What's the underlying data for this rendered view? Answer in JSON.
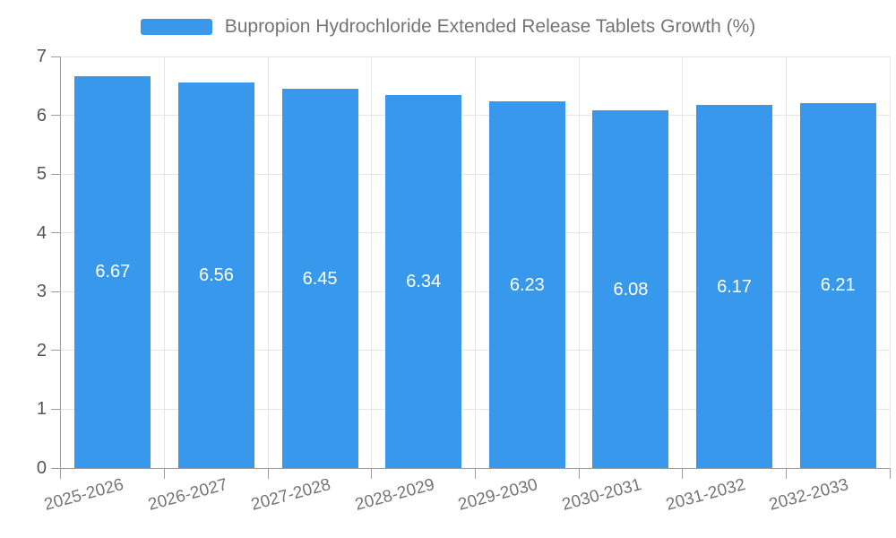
{
  "chart_data": {
    "type": "bar",
    "series_name": "Bupropion Hydrochloride Extended Release Tablets Growth (%)",
    "categories": [
      "2025-2026",
      "2026-2027",
      "2027-2028",
      "2028-2029",
      "2029-2030",
      "2030-2031",
      "2031-2032",
      "2032-2033"
    ],
    "values": [
      6.67,
      6.56,
      6.45,
      6.34,
      6.23,
      6.08,
      6.17,
      6.21
    ],
    "value_labels": [
      "6.67",
      "6.56",
      "6.45",
      "6.34",
      "6.23",
      "6.08",
      "6.17",
      "6.21"
    ],
    "title": "",
    "xlabel": "",
    "ylabel": "",
    "ylim": [
      0,
      7
    ],
    "y_ticks": [
      0,
      1,
      2,
      3,
      4,
      5,
      6,
      7
    ],
    "grid": true,
    "legend_position": "top",
    "value_label_position": "inside-center",
    "x_label_rotation_deg": -15
  },
  "colors": {
    "background": "#FFFFFF",
    "bar": "#3899EC",
    "value_label": "#FFFFFF",
    "grid_line": "#E6E6E6",
    "axis_line": "#9E9E9E",
    "y_tick_label": "#555555",
    "x_tick_label": "#757575",
    "legend_text": "#757575"
  }
}
